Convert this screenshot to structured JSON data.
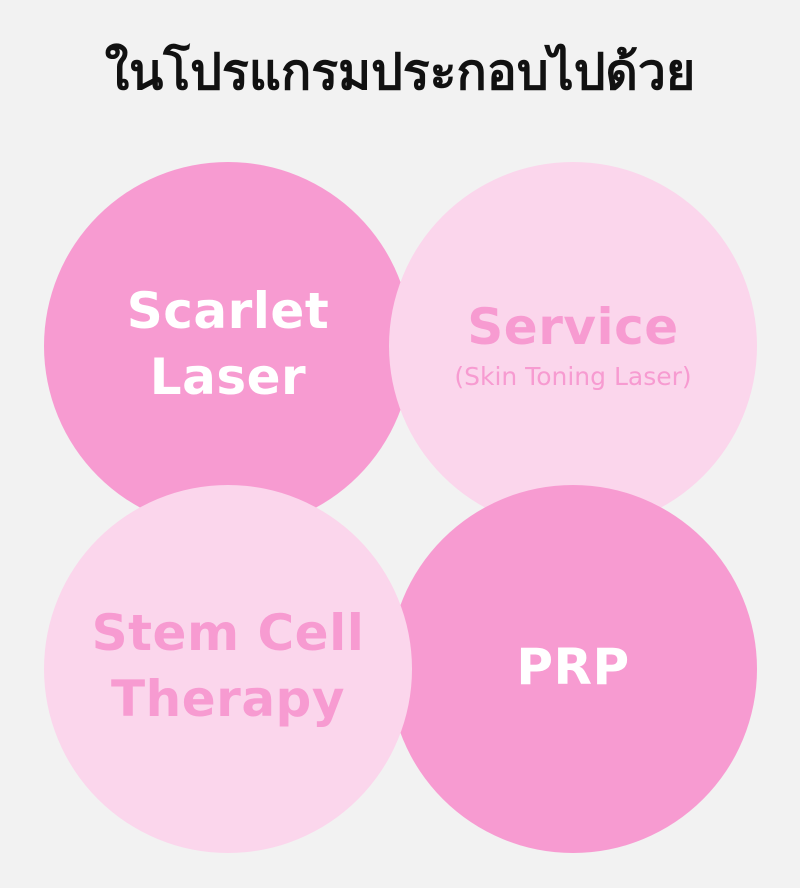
{
  "title": "ในโปรแกรมประกอบไปด้วย",
  "circles": [
    {
      "line1": "Scarlet",
      "line2": "Laser",
      "color": "#f79bd1"
    },
    {
      "line1": "Service",
      "sub": "(Skin Toning Laser)",
      "color": "#fbd6ec"
    },
    {
      "line1": "Stem Cell",
      "line2": "Therapy",
      "color": "#fbd6ec"
    },
    {
      "line1": "PRP",
      "color": "#f79bd1"
    }
  ],
  "colors": {
    "background": "#f2f2f2",
    "hot_pink": "#f79bd1",
    "light_pink": "#fbd6ec",
    "title_text": "#111111"
  }
}
